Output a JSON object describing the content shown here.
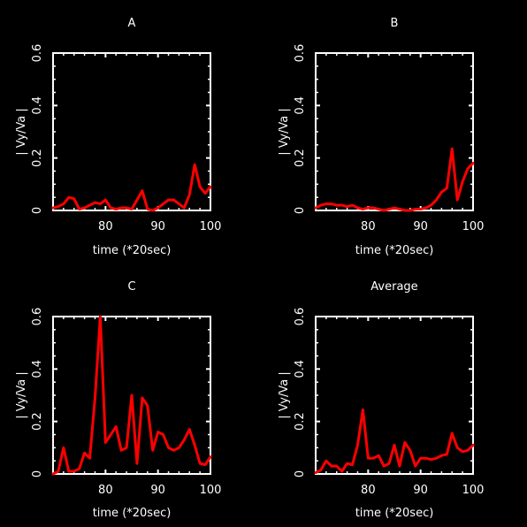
{
  "figure": {
    "background": "#000000",
    "axis_color": "#ffffff",
    "line_color": "#ff0000"
  },
  "chart_data": [
    {
      "type": "line",
      "title": "A",
      "xlabel": "time (*20sec)",
      "ylabel": "| Vy/Va |",
      "xlim": [
        70,
        100
      ],
      "ylim": [
        0,
        0.6
      ],
      "xticks": [
        80,
        90,
        100
      ],
      "yticks": [
        0,
        0.2,
        0.4,
        0.6
      ],
      "grid": false,
      "series": [
        {
          "x": [
            70,
            71,
            72,
            73,
            74,
            75,
            76,
            77,
            78,
            79,
            80,
            81,
            82,
            83,
            84,
            85,
            86,
            87,
            88,
            89,
            90,
            91,
            92,
            93,
            94,
            95,
            96,
            97,
            98,
            99,
            100
          ],
          "values": [
            0.01,
            0.015,
            0.025,
            0.05,
            0.045,
            0.005,
            0.01,
            0.02,
            0.03,
            0.025,
            0.04,
            0.01,
            0.005,
            0.01,
            0.01,
            0.005,
            0.04,
            0.075,
            0.005,
            0.0,
            0.01,
            0.025,
            0.04,
            0.04,
            0.025,
            0.01,
            0.06,
            0.175,
            0.09,
            0.065,
            0.09
          ]
        }
      ]
    },
    {
      "type": "line",
      "title": "B",
      "xlabel": "time (*20sec)",
      "ylabel": "| Vy/Va |",
      "xlim": [
        70,
        100
      ],
      "ylim": [
        0,
        0.6
      ],
      "xticks": [
        80,
        90,
        100
      ],
      "yticks": [
        0,
        0.2,
        0.4,
        0.6
      ],
      "grid": false,
      "series": [
        {
          "x": [
            70,
            71,
            72,
            73,
            74,
            75,
            76,
            77,
            78,
            79,
            80,
            81,
            82,
            83,
            84,
            85,
            86,
            87,
            88,
            89,
            90,
            91,
            92,
            93,
            94,
            95,
            96,
            97,
            98,
            99,
            100
          ],
          "values": [
            0.01,
            0.02,
            0.025,
            0.025,
            0.02,
            0.02,
            0.015,
            0.02,
            0.01,
            0.005,
            0.01,
            0.01,
            0.005,
            0.0,
            0.005,
            0.01,
            0.005,
            0.0,
            0.0,
            0.005,
            0.005,
            0.01,
            0.02,
            0.04,
            0.07,
            0.085,
            0.235,
            0.04,
            0.11,
            0.16,
            0.18
          ]
        }
      ]
    },
    {
      "type": "line",
      "title": "C",
      "xlabel": "time (*20sec)",
      "ylabel": "| Vy/Va |",
      "xlim": [
        70,
        100
      ],
      "ylim": [
        0,
        0.6
      ],
      "xticks": [
        80,
        90,
        100
      ],
      "yticks": [
        0,
        0.2,
        0.4,
        0.6
      ],
      "grid": false,
      "series": [
        {
          "x": [
            70,
            71,
            72,
            73,
            74,
            75,
            76,
            77,
            78,
            79,
            80,
            81,
            82,
            83,
            84,
            85,
            86,
            87,
            88,
            89,
            90,
            91,
            92,
            93,
            94,
            95,
            96,
            97,
            98,
            99,
            100
          ],
          "values": [
            0.0,
            0.01,
            0.1,
            0.01,
            0.01,
            0.02,
            0.08,
            0.06,
            0.29,
            0.6,
            0.12,
            0.15,
            0.18,
            0.09,
            0.1,
            0.3,
            0.04,
            0.29,
            0.26,
            0.09,
            0.16,
            0.15,
            0.1,
            0.09,
            0.1,
            0.13,
            0.17,
            0.11,
            0.04,
            0.035,
            0.065
          ]
        }
      ]
    },
    {
      "type": "line",
      "title": "Average",
      "xlabel": "time (*20sec)",
      "ylabel": "| Vy/Va |",
      "xlim": [
        70,
        100
      ],
      "ylim": [
        0,
        0.6
      ],
      "xticks": [
        80,
        90,
        100
      ],
      "yticks": [
        0,
        0.2,
        0.4,
        0.6
      ],
      "grid": false,
      "series": [
        {
          "x": [
            70,
            71,
            72,
            73,
            74,
            75,
            76,
            77,
            78,
            79,
            80,
            81,
            82,
            83,
            84,
            85,
            86,
            87,
            88,
            89,
            90,
            91,
            92,
            93,
            94,
            95,
            96,
            97,
            98,
            99,
            100
          ],
          "values": [
            0.005,
            0.015,
            0.05,
            0.03,
            0.03,
            0.01,
            0.04,
            0.035,
            0.11,
            0.245,
            0.06,
            0.06,
            0.07,
            0.03,
            0.04,
            0.11,
            0.03,
            0.12,
            0.09,
            0.03,
            0.06,
            0.06,
            0.055,
            0.06,
            0.07,
            0.075,
            0.155,
            0.1,
            0.085,
            0.09,
            0.11
          ]
        }
      ]
    }
  ]
}
